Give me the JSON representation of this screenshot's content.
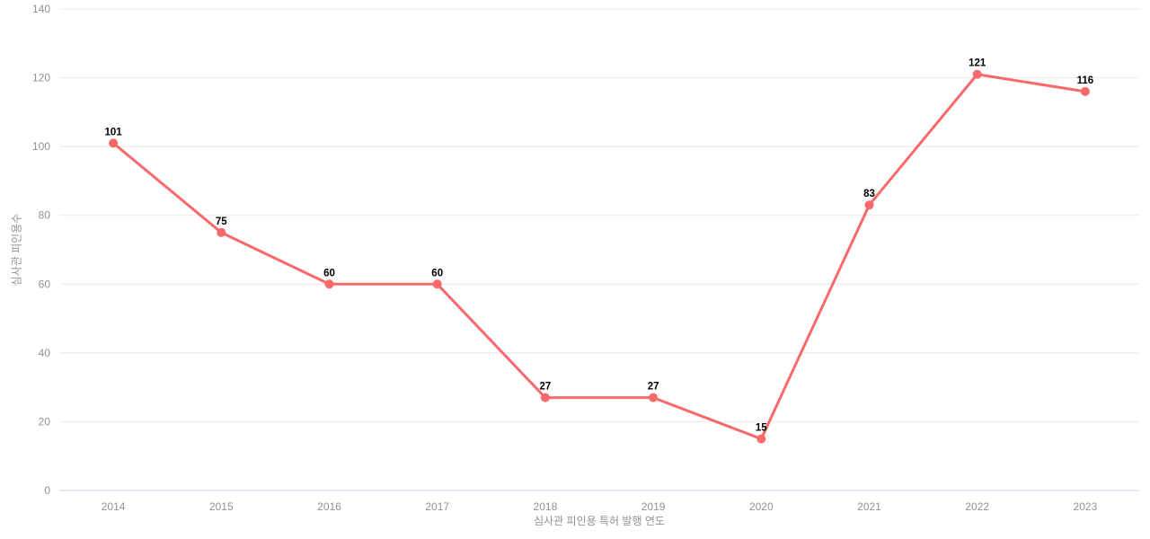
{
  "chart_data": {
    "type": "line",
    "title": "",
    "categories": [
      "2014",
      "2015",
      "2016",
      "2017",
      "2018",
      "2019",
      "2020",
      "2021",
      "2022",
      "2023"
    ],
    "values": [
      101,
      75,
      60,
      60,
      27,
      27,
      15,
      83,
      121,
      116
    ],
    "xlabel": "심사관 피인용 특허 발행 연도",
    "ylabel": "심사관 피인용수",
    "ylim": [
      0,
      140
    ],
    "y_ticks": [
      0,
      20,
      40,
      60,
      80,
      100,
      120,
      140
    ],
    "grid": true,
    "legend": "none",
    "data_labels": true,
    "colors": {
      "line": "#f8696b",
      "marker": "#f8696b",
      "gridline": "#e8e8e8",
      "axis_line": "#ccd6eb",
      "tick_label": "#8f9296",
      "axis_title": "#8f9296",
      "data_label": "#000000",
      "background": "#ffffff"
    }
  }
}
